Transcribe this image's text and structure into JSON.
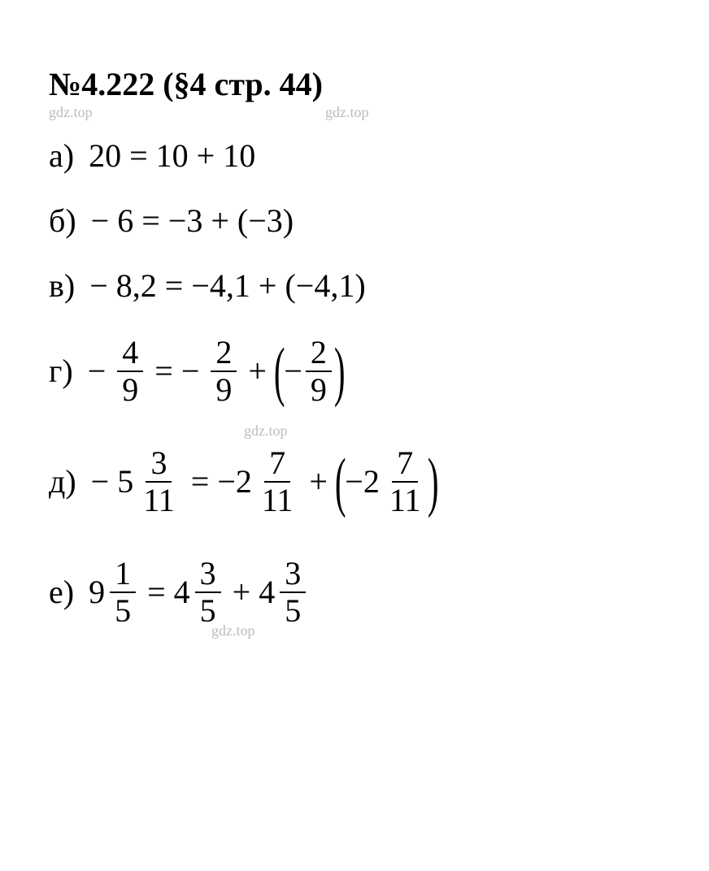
{
  "title": "№4.222 (§4 стр. 44)",
  "watermark": "gdz.top",
  "lines": {
    "a": {
      "label": "а)",
      "expr": " 20 = 10 + 10"
    },
    "b": {
      "label": "б)",
      "expr": " − 6 = −3 + (−3)"
    },
    "c": {
      "label": "в)",
      "expr": " − 8,2 = −4,1 + (−4,1)"
    },
    "d": {
      "label": "г)",
      "lhs_minus": " − ",
      "lhs_num": "4",
      "lhs_den": "9",
      "eq": " = ",
      "rhs1_minus": "− ",
      "rhs1_num": "2",
      "rhs1_den": "9",
      "plus": " + ",
      "rhs2_minus": "−",
      "rhs2_num": "2",
      "rhs2_den": "9",
      "lparen": "(",
      "rparen": ")"
    },
    "e": {
      "label": "д)",
      "lhs_minus": " − ",
      "lhs_whole": "5",
      "lhs_num": "3",
      "lhs_den": "11",
      "eq": " = ",
      "rhs1_minus": "−",
      "rhs1_whole": "2",
      "rhs1_num": "7",
      "rhs1_den": "11",
      "plus": " + ",
      "rhs2_minus": "−",
      "rhs2_whole": "2",
      "rhs2_num": "7",
      "rhs2_den": "11",
      "lparen": "(",
      "rparen": ")"
    },
    "f": {
      "label": "е)",
      "space": " ",
      "lhs_whole": "9",
      "lhs_num": "1",
      "lhs_den": "5",
      "eq": " = ",
      "rhs1_whole": "4",
      "rhs1_num": "3",
      "rhs1_den": "5",
      "plus": " + ",
      "rhs2_whole": "4",
      "rhs2_num": "3",
      "rhs2_den": "5"
    }
  }
}
